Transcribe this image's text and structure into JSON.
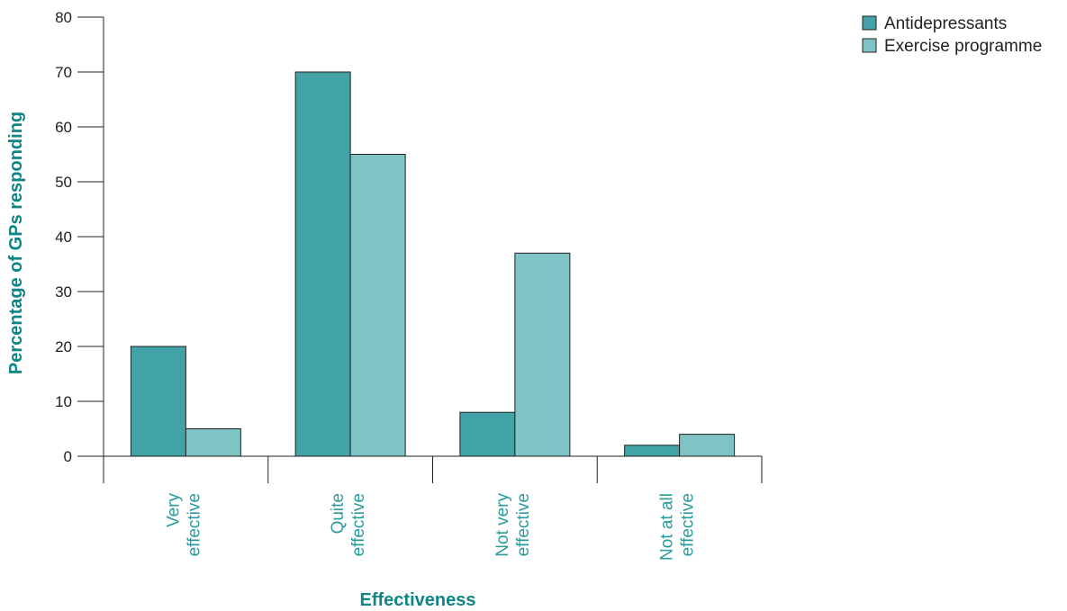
{
  "chart_data": {
    "type": "bar",
    "categories": [
      [
        "Very",
        "effective"
      ],
      [
        "Quite",
        "effective"
      ],
      [
        "Not very",
        "effective"
      ],
      [
        "Not at all",
        "effective"
      ]
    ],
    "series": [
      {
        "name": "Antidepressants",
        "values": [
          20,
          70,
          8,
          2
        ],
        "color": "#41a3a5"
      },
      {
        "name": "Exercise programme",
        "values": [
          5,
          55,
          37,
          4
        ],
        "color": "#80c3c5"
      }
    ],
    "xlabel": "Effectiveness",
    "ylabel": "Percentage of GPs responding",
    "ylim": [
      0,
      80
    ],
    "yticks": [
      0,
      10,
      20,
      30,
      40,
      50,
      60,
      70,
      80
    ],
    "legend_position": "top-right",
    "grid": false,
    "colors": {
      "axis_title": "#0e8586",
      "category_label": "#2a9b9c",
      "axis_line": "#222222",
      "bar_stroke": "#222222"
    }
  }
}
